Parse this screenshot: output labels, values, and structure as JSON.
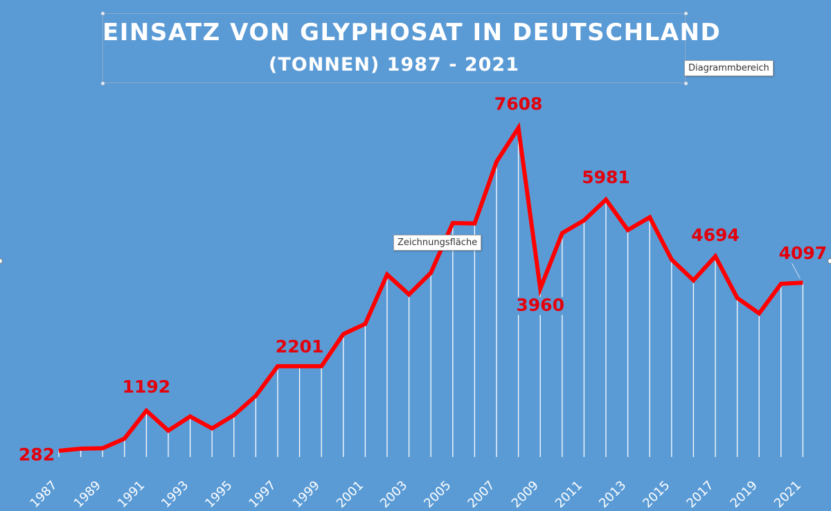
{
  "title": {
    "line1": "EINSATZ VON GLYPHOSAT IN DEUTSCHLAND",
    "line2": "(TONNEN) 1987 - 2021"
  },
  "tooltips": {
    "chart_area": "Diagrammbereich",
    "plot_area": "Zeichnungsfläche"
  },
  "colors": {
    "background": "#5b9bd5",
    "line": "#ff0000",
    "drop_lines": "#ffffff",
    "labels": "#e3000b",
    "axis_text": "#ffffff"
  },
  "chart_data": {
    "type": "line",
    "title": "EINSATZ VON GLYPHOSAT IN DEUTSCHLAND (TONNEN) 1987 - 2021",
    "x": [
      1987,
      1988,
      1989,
      1990,
      1991,
      1992,
      1993,
      1994,
      1995,
      1996,
      1997,
      1998,
      1999,
      2000,
      2001,
      2002,
      2003,
      2004,
      2005,
      2006,
      2007,
      2008,
      2009,
      2010,
      2011,
      2012,
      2013,
      2014,
      2015,
      2016,
      2017,
      2018,
      2019,
      2020,
      2021
    ],
    "series": [
      {
        "values": [
          282,
          330,
          340,
          560,
          1192,
          740,
          1060,
          790,
          1090,
          1530,
          2201,
          2201,
          2201,
          2930,
          3160,
          4280,
          3830,
          4320,
          5450,
          5440,
          6840,
          7608,
          3960,
          5220,
          5510,
          5981,
          5290,
          5580,
          4620,
          4150,
          4694,
          3750,
          3400,
          4070,
          4097
        ]
      }
    ],
    "x_tick_labels": [
      "1987",
      "1989",
      "1991",
      "1993",
      "1995",
      "1997",
      "1999",
      "2001",
      "2003",
      "2005",
      "2007",
      "2009",
      "2011",
      "2013",
      "2015",
      "2017",
      "2019",
      "2021"
    ],
    "data_labels": [
      {
        "year": 1987,
        "text": "282"
      },
      {
        "year": 1991,
        "text": "1192"
      },
      {
        "year": 1998,
        "text": "2201"
      },
      {
        "year": 2008,
        "text": "7608"
      },
      {
        "year": 2009,
        "text": "3960"
      },
      {
        "year": 2012,
        "text": "5981"
      },
      {
        "year": 2017,
        "text": "4694"
      },
      {
        "year": 2021,
        "text": "4097"
      }
    ],
    "ylim": [
      0,
      8200
    ],
    "grid": false,
    "drop_lines": true,
    "legend": "none"
  }
}
